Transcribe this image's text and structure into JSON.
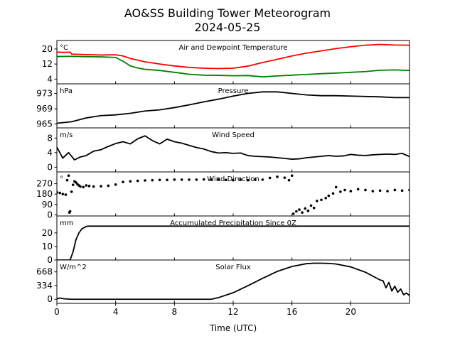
{
  "figure": {
    "title_line1": "AO&SS Building Tower Meteorogram",
    "title_line2": "2024-05-25",
    "xlabel": "Time (UTC)"
  },
  "chart_data": {
    "type": "line",
    "x_unit": "hours UTC",
    "xlim": [
      0,
      24
    ],
    "xticks": [
      0,
      4,
      8,
      12,
      16,
      20
    ],
    "panels": [
      {
        "id": "temp",
        "title": "Air and Dewpoint Temperature",
        "unit": "°C",
        "ylim": [
          1.5,
          24.5
        ],
        "yticks": [
          4,
          12,
          20
        ],
        "series": [
          {
            "color": "#ff0000",
            "style": "line",
            "x": [
              0,
              0.5,
              0.9,
              1,
              2,
              3,
              4,
              4.5,
              5,
              6,
              7,
              8,
              9,
              10,
              11,
              12,
              13,
              14,
              15,
              16,
              17,
              18,
              19,
              20,
              21,
              22,
              23,
              24
            ],
            "y": [
              18.3,
              18.2,
              18.3,
              17.3,
              17.0,
              16.8,
              16.9,
              16.3,
              15.0,
              13.2,
              12.0,
              11.0,
              10.2,
              9.8,
              9.6,
              9.8,
              10.9,
              12.8,
              14.5,
              16.3,
              17.8,
              19.0,
              20.2,
              21.2,
              22.0,
              22.4,
              22.1,
              22.0
            ]
          },
          {
            "color": "#008000",
            "style": "line",
            "x": [
              0,
              1,
              2,
              3,
              4,
              4.5,
              5,
              5.5,
              6,
              7,
              8,
              9,
              10,
              11,
              12,
              13,
              14,
              15,
              16,
              17,
              18,
              19,
              20,
              21,
              22,
              23,
              24
            ],
            "y": [
              16.0,
              16.1,
              15.9,
              15.8,
              15.5,
              13.5,
              11.0,
              9.9,
              9.2,
              8.6,
              7.6,
              6.6,
              6.1,
              6.0,
              5.8,
              5.9,
              5.2,
              5.7,
              6.1,
              6.5,
              6.9,
              7.2,
              7.6,
              8.0,
              8.7,
              8.9,
              8.6
            ]
          }
        ]
      },
      {
        "id": "pressure",
        "title": "Pressure",
        "unit": "hPa",
        "ylim": [
          964.0,
          975.5
        ],
        "yticks": [
          965,
          969,
          973
        ],
        "series": [
          {
            "color": "#000000",
            "style": "line",
            "x": [
              0,
              1,
              2,
              3,
              4,
              5,
              6,
              7,
              8,
              9,
              10,
              11,
              12,
              13,
              14,
              15,
              16,
              17,
              18,
              19,
              20,
              21,
              22,
              23,
              24
            ],
            "y": [
              965.2,
              965.6,
              966.6,
              967.2,
              967.4,
              967.8,
              968.4,
              968.7,
              969.3,
              970.0,
              970.8,
              971.5,
              972.3,
              973.0,
              973.4,
              973.4,
              973.0,
              972.6,
              972.4,
              972.4,
              972.3,
              972.2,
              972.1,
              971.9,
              971.9
            ]
          }
        ]
      },
      {
        "id": "wind_speed",
        "title": "Wind Speed",
        "unit": "m/s",
        "ylim": [
          -1.3,
          10.8
        ],
        "yticks": [
          0,
          4,
          8
        ],
        "series": [
          {
            "color": "#000000",
            "style": "line",
            "x": [
              0,
              0.4,
              0.8,
              1.2,
              1.6,
              2,
              2.5,
              3,
              3.5,
              4,
              4.5,
              5,
              5.5,
              6,
              6.5,
              7,
              7.5,
              8,
              8.5,
              9,
              9.5,
              10,
              10.5,
              11,
              11.5,
              12,
              12.5,
              13,
              13.5,
              14,
              14.5,
              15,
              15.5,
              16,
              16.5,
              17,
              17.5,
              18,
              18.5,
              19,
              19.5,
              20,
              20.5,
              21,
              21.5,
              22,
              22.5,
              23,
              23.5,
              24
            ],
            "y": [
              5.5,
              2.5,
              4.0,
              2.0,
              2.8,
              3.2,
              4.4,
              4.8,
              5.7,
              6.5,
              7.0,
              6.4,
              7.8,
              8.6,
              7.3,
              6.4,
              7.7,
              7.0,
              6.6,
              6.0,
              5.4,
              5.0,
              4.3,
              3.9,
              4.0,
              3.8,
              3.9,
              3.2,
              3.0,
              2.9,
              2.8,
              2.6,
              2.4,
              2.2,
              2.3,
              2.6,
              2.8,
              3.0,
              3.2,
              3.0,
              3.1,
              3.5,
              3.3,
              3.2,
              3.4,
              3.5,
              3.6,
              3.5,
              3.8,
              2.9
            ]
          }
        ]
      },
      {
        "id": "wind_dir",
        "title": "Wind Direction",
        "unit": "°",
        "ylim": [
          -10,
          372
        ],
        "yticks": [
          0,
          90,
          180,
          270
        ],
        "series": [
          {
            "color": "#000000",
            "style": "dots",
            "x": [
              0,
              0.2,
              0.4,
              0.6,
              0.7,
              0.8,
              0.85,
              0.9,
              1.0,
              1.1,
              1.2,
              1.3,
              1.4,
              1.5,
              1.6,
              1.8,
              2.0,
              2.2,
              2.5,
              3.0,
              3.5,
              4.0,
              4.5,
              5.0,
              5.5,
              6.0,
              6.5,
              7.0,
              7.5,
              8.0,
              8.5,
              9.0,
              9.5,
              10.0,
              10.5,
              11.0,
              11.5,
              12.0,
              12.5,
              13.0,
              13.5,
              14.0,
              14.5,
              15.0,
              15.5,
              15.8,
              16.0,
              16.1,
              16.3,
              16.5,
              16.7,
              16.9,
              17.1,
              17.3,
              17.5,
              17.7,
              18.0,
              18.3,
              18.5,
              18.8,
              19.0,
              19.3,
              19.6,
              20.0,
              20.5,
              21.0,
              21.5,
              22.0,
              22.5,
              23.0,
              23.5,
              24.0
            ],
            "y": [
              195,
              190,
              180,
              175,
              300,
              340,
              20,
              30,
              200,
              260,
              290,
              280,
              265,
              255,
              245,
              240,
              255,
              250,
              245,
              248,
              252,
              262,
              285,
              290,
              295,
              298,
              300,
              302,
              302,
              305,
              305,
              305,
              305,
              307,
              305,
              305,
              302,
              300,
              305,
              300,
              305,
              305,
              320,
              330,
              322,
              300,
              340,
              10,
              30,
              45,
              20,
              55,
              35,
              80,
              60,
              120,
              130,
              145,
              165,
              185,
              240,
              200,
              215,
              205,
              222,
              215,
              205,
              210,
              205,
              215,
              210,
              215
            ]
          }
        ]
      },
      {
        "id": "precip",
        "title": "Accumulated Precipitation Since 0Z",
        "unit": "mm",
        "ylim": [
          0,
          32.5
        ],
        "yticks": [
          0,
          10,
          20
        ],
        "series": [
          {
            "color": "#000000",
            "style": "line",
            "x": [
              0,
              0.9,
              1.1,
              1.3,
              1.5,
              1.7,
              2.0,
              2.2,
              24
            ],
            "y": [
              0,
              0,
              6,
              15,
              20,
              23,
              24.8,
              25,
              25
            ]
          }
        ]
      },
      {
        "id": "solar",
        "title": "Solar Flux",
        "unit": "W/m^2",
        "ylim": [
          -100,
          958
        ],
        "yticks": [
          0,
          334,
          668
        ],
        "series": [
          {
            "color": "#000000",
            "style": "line",
            "x": [
              0,
              0.2,
              0.5,
              1,
              2,
              4,
              6,
              8,
              10,
              10.5,
              11,
              12,
              13,
              14,
              15,
              16,
              17,
              17.5,
              18,
              18.5,
              19,
              20,
              21,
              22,
              22.2,
              22.4,
              22.6,
              22.8,
              23,
              23.2,
              23.4,
              23.6,
              23.8,
              24
            ],
            "y": [
              10,
              30,
              10,
              0,
              0,
              0,
              0,
              0,
              0,
              0,
              40,
              160,
              330,
              510,
              680,
              800,
              870,
              880,
              880,
              875,
              860,
              790,
              660,
              470,
              450,
              280,
              410,
              200,
              320,
              170,
              250,
              110,
              150,
              90
            ]
          }
        ]
      }
    ]
  }
}
